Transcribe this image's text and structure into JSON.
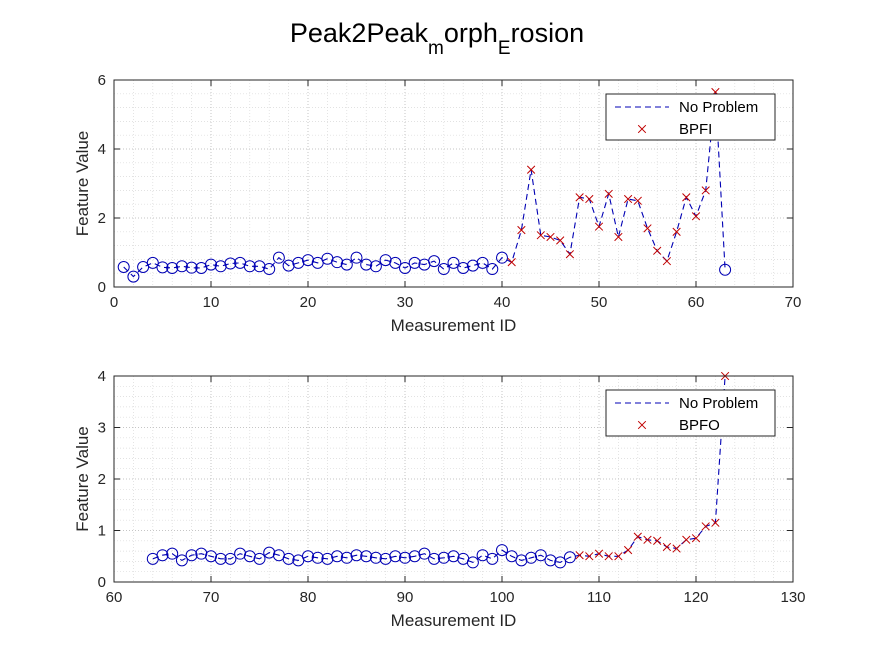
{
  "figure": {
    "title_parts": [
      {
        "text": "Peak2Peak",
        "sub": false
      },
      {
        "text": "m",
        "sub": true
      },
      {
        "text": "orph",
        "sub": false
      },
      {
        "text": "E",
        "sub": true
      },
      {
        "text": "rosion",
        "sub": false
      }
    ]
  },
  "chart_data": [
    {
      "type": "line",
      "xlabel": "Measurement ID",
      "ylabel": "Feature Value",
      "xlim": [
        0,
        70
      ],
      "ylim": [
        0,
        6
      ],
      "xticks": [
        0,
        10,
        20,
        30,
        40,
        50,
        60,
        70
      ],
      "yticks": [
        0,
        2,
        4,
        6
      ],
      "grid": true,
      "minor_grid": true,
      "legend_placement": "top-right",
      "colors": {
        "no_problem": "#0000b4",
        "fault": "#c00000"
      },
      "series": [
        {
          "name": "No Problem",
          "marker": "circle",
          "x": [
            1,
            2,
            3,
            4,
            5,
            6,
            7,
            8,
            9,
            10,
            11,
            12,
            13,
            14,
            15,
            16,
            17,
            18,
            19,
            20,
            21,
            22,
            23,
            24,
            25,
            26,
            27,
            28,
            29,
            30,
            31,
            32,
            33,
            34,
            35,
            36,
            37,
            38,
            39,
            40,
            41,
            42,
            43,
            44,
            45,
            46,
            47,
            48,
            49,
            50,
            51,
            52,
            53,
            54,
            55,
            56,
            57,
            58,
            59,
            60,
            61,
            62,
            63
          ],
          "y": [
            0.58,
            0.3,
            0.58,
            0.7,
            0.57,
            0.55,
            0.6,
            0.56,
            0.55,
            0.65,
            0.6,
            0.68,
            0.7,
            0.6,
            0.6,
            0.52,
            0.85,
            0.62,
            0.7,
            0.78,
            0.7,
            0.82,
            0.72,
            0.65,
            0.85,
            0.65,
            0.6,
            0.78,
            0.7,
            0.55,
            0.7,
            0.65,
            0.75,
            0.52,
            0.7,
            0.55,
            0.62,
            0.7,
            0.52,
            0.85,
            0.72,
            1.65,
            3.4,
            1.5,
            1.45,
            1.35,
            0.95,
            2.6,
            2.55,
            1.75,
            2.7,
            1.45,
            2.55,
            2.5,
            1.7,
            1.05,
            0.75,
            1.6,
            2.6,
            2.05,
            2.8,
            5.65,
            0.5
          ]
        },
        {
          "name": "BPFI",
          "marker": "x",
          "x": [
            41,
            42,
            43,
            44,
            45,
            46,
            47,
            48,
            49,
            50,
            51,
            52,
            53,
            54,
            55,
            56,
            57,
            58,
            59,
            60,
            61,
            62
          ],
          "y": [
            0.72,
            1.65,
            3.4,
            1.5,
            1.45,
            1.35,
            0.95,
            2.6,
            2.55,
            1.75,
            2.7,
            1.45,
            2.55,
            2.5,
            1.7,
            1.05,
            0.75,
            1.6,
            2.6,
            2.05,
            2.8,
            5.65
          ]
        }
      ],
      "circle_x_max": 40,
      "circle_extra_x": [
        63
      ]
    },
    {
      "type": "line",
      "xlabel": "Measurement ID",
      "ylabel": "Feature Value",
      "xlim": [
        60,
        130
      ],
      "ylim": [
        0,
        4
      ],
      "xticks": [
        60,
        70,
        80,
        90,
        100,
        110,
        120,
        130
      ],
      "yticks": [
        0,
        1,
        2,
        3,
        4
      ],
      "grid": true,
      "minor_grid": true,
      "legend_placement": "top-right",
      "colors": {
        "no_problem": "#0000b4",
        "fault": "#c00000"
      },
      "series": [
        {
          "name": "No Problem",
          "marker": "circle",
          "x": [
            64,
            65,
            66,
            67,
            68,
            69,
            70,
            71,
            72,
            73,
            74,
            75,
            76,
            77,
            78,
            79,
            80,
            81,
            82,
            83,
            84,
            85,
            86,
            87,
            88,
            89,
            90,
            91,
            92,
            93,
            94,
            95,
            96,
            97,
            98,
            99,
            100,
            101,
            102,
            103,
            104,
            105,
            106,
            107,
            108,
            109,
            110,
            111,
            112,
            113,
            114,
            115,
            116,
            117,
            118,
            119,
            120,
            121,
            122,
            123
          ],
          "y": [
            0.45,
            0.52,
            0.55,
            0.42,
            0.52,
            0.55,
            0.5,
            0.45,
            0.45,
            0.55,
            0.5,
            0.45,
            0.57,
            0.52,
            0.45,
            0.42,
            0.5,
            0.47,
            0.45,
            0.5,
            0.47,
            0.52,
            0.5,
            0.47,
            0.45,
            0.5,
            0.47,
            0.5,
            0.55,
            0.45,
            0.47,
            0.5,
            0.45,
            0.38,
            0.52,
            0.45,
            0.62,
            0.5,
            0.42,
            0.47,
            0.52,
            0.42,
            0.38,
            0.48,
            0.52,
            0.5,
            0.55,
            0.5,
            0.5,
            0.62,
            0.88,
            0.82,
            0.8,
            0.68,
            0.65,
            0.82,
            0.85,
            1.08,
            1.15,
            4.0
          ]
        },
        {
          "name": "BPFO",
          "marker": "x",
          "x": [
            108,
            109,
            110,
            111,
            112,
            113,
            114,
            115,
            116,
            117,
            118,
            119,
            120,
            121,
            122,
            123
          ],
          "y": [
            0.52,
            0.5,
            0.55,
            0.5,
            0.5,
            0.62,
            0.88,
            0.82,
            0.8,
            0.68,
            0.65,
            0.82,
            0.85,
            1.08,
            1.15,
            4.0
          ]
        }
      ],
      "circle_x_max": 107,
      "circle_extra_x": []
    }
  ]
}
